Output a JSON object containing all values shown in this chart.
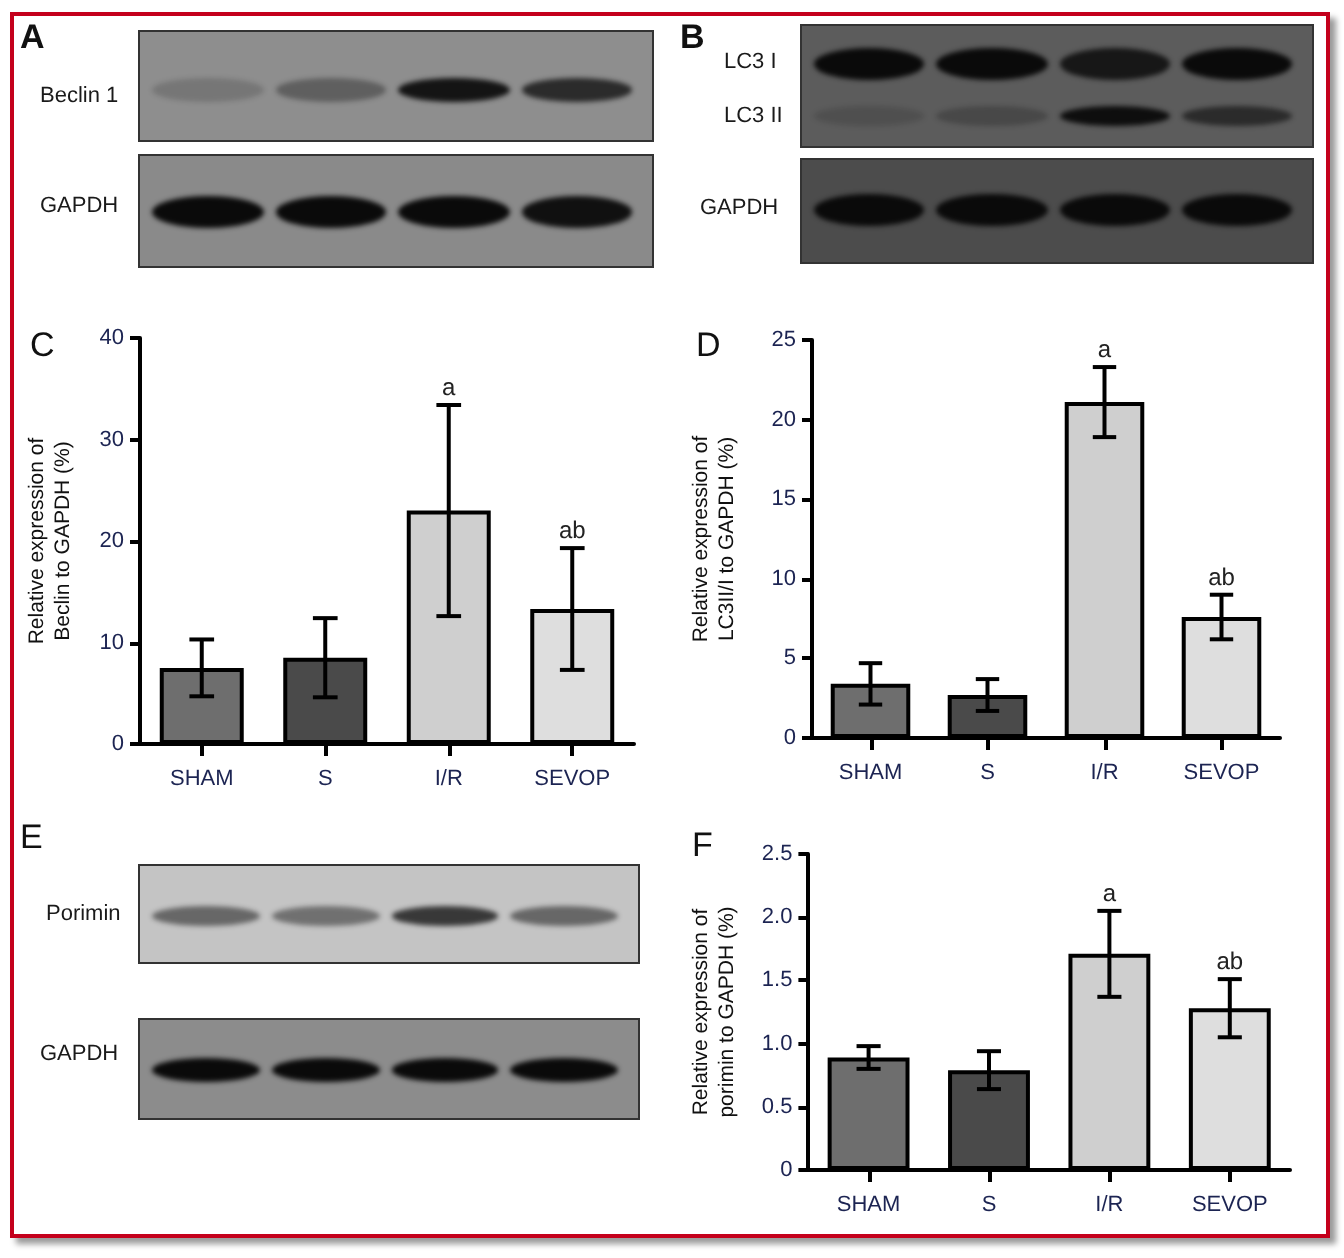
{
  "chart_data": [
    {
      "type": "other",
      "title": "A",
      "annotations": [
        "Beclin 1",
        "GAPDH"
      ]
    },
    {
      "type": "other",
      "title": "B",
      "annotations": [
        "LC3 I",
        "LC3 II",
        "GAPDH"
      ]
    },
    {
      "type": "bar",
      "title": "C",
      "ylabel": "Relative expression of\nBeclin to GAPDH (%)",
      "categories": [
        "SHAM",
        "S",
        "I/R",
        "SEVOP"
      ],
      "values": [
        7.5,
        8.5,
        23.0,
        13.3
      ],
      "errors": [
        2.8,
        3.9,
        10.4,
        6.0
      ],
      "colors": [
        "#6e6e6e",
        "#4a4a4a",
        "#cfcfcf",
        "#dedede"
      ],
      "ylim": [
        0,
        40
      ],
      "yticks": [
        0,
        10,
        20,
        30,
        40
      ],
      "annotations": [
        {
          "text": "a",
          "x": "I/R",
          "y": 33.4
        },
        {
          "text": "ab",
          "x": "SEVOP",
          "y": 19.3
        }
      ]
    },
    {
      "type": "bar",
      "title": "D",
      "ylabel": "Relative expression of\nLC3II/I to GAPDH (%)",
      "categories": [
        "SHAM",
        "S",
        "I/R",
        "SEVOP"
      ],
      "values": [
        3.4,
        2.7,
        21.1,
        7.6
      ],
      "errors": [
        1.3,
        1.0,
        2.2,
        1.4
      ],
      "colors": [
        "#6e6e6e",
        "#4a4a4a",
        "#cfcfcf",
        "#dedede"
      ],
      "ylim": [
        0,
        25
      ],
      "yticks": [
        0,
        5,
        10,
        15,
        20,
        25
      ],
      "annotations": [
        {
          "text": "a",
          "x": "I/R",
          "y": 23.3
        },
        {
          "text": "ab",
          "x": "SEVOP",
          "y": 9.0
        }
      ]
    },
    {
      "type": "other",
      "title": "E",
      "annotations": [
        "Porimin",
        "GAPDH"
      ]
    },
    {
      "type": "bar",
      "title": "F",
      "ylabel": "Relative expression of\nporimin to GAPDH (%)",
      "categories": [
        "SHAM",
        "S",
        "I/R",
        "SEVOP"
      ],
      "values": [
        0.89,
        0.79,
        1.71,
        1.28
      ],
      "errors": [
        0.09,
        0.15,
        0.34,
        0.23
      ],
      "colors": [
        "#6e6e6e",
        "#4a4a4a",
        "#cfcfcf",
        "#dedede"
      ],
      "ylim": [
        0,
        2.5
      ],
      "yticks": [
        0,
        0.5,
        {
          "value": 1,
          "label": "1.0"
        },
        1.5,
        {
          "value": 2,
          "label": "2.0"
        },
        2.5
      ],
      "annotations": [
        {
          "text": "a",
          "x": "I/R",
          "y": 2.05
        },
        {
          "text": "ab",
          "x": "SEVOP",
          "y": 1.51
        }
      ]
    }
  ]
}
